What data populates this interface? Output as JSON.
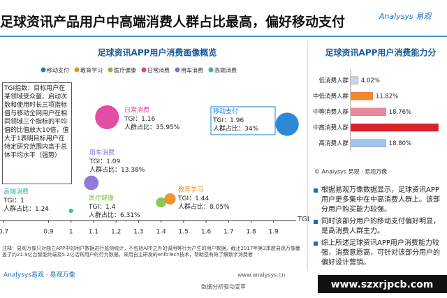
{
  "header": {
    "title": "足球资讯产品用户中高端消费人群占比最高，偏好移动支付",
    "logo": "Analysys 易观"
  },
  "chart_data": [
    {
      "type": "bubble",
      "title": "足球资讯APP用户消费画像概览",
      "x_label": "TGI",
      "tgi_prefix": "TGI：",
      "share_prefix": "人群占比：",
      "categories": [
        "移动支付",
        "教育学习",
        "医疗健康",
        "日常消费",
        "用车消费",
        "高端消费"
      ],
      "colors": [
        "#1a7fd4",
        "#f08a24",
        "#7cc142",
        "#e0409a",
        "#8a6fd6",
        "#3bb3a0"
      ],
      "x": [
        1.96,
        1.44,
        1.4,
        1.16,
        1.09,
        1
      ],
      "sizes": [
        34,
        8.05,
        6.31,
        35.95,
        13.38,
        1.24
      ],
      "size_labels": [
        "34%",
        "8.05%",
        "6.31%",
        "35.95%",
        "13.38%",
        "1.24"
      ],
      "xlim": [
        0.7,
        2.0
      ],
      "xticks": [
        0.7,
        0.9,
        1,
        1.1,
        1.2,
        1.3,
        1.4,
        1.5,
        1.6,
        1.7,
        1.8,
        1.9
      ]
    },
    {
      "type": "hbar",
      "title": "足球资讯APP用户消费能力分",
      "categories": [
        "低消费人群",
        "中低消费人群",
        "中等消费人群",
        "中高消费人群",
        "高消费人群"
      ],
      "values": [
        4.02,
        11.82,
        18.76,
        46.6,
        18.8
      ],
      "value_labels": [
        "4.02%",
        "11.82%",
        "18.76%",
        null,
        "18.80%"
      ],
      "colors": [
        "#bcd7f0",
        "#f08a24",
        "#e98a9c",
        "#d9222a",
        "#9cc8ec"
      ],
      "xlim": [
        0,
        50
      ],
      "source": "© Analysys 易观 · 易观万像"
    }
  ],
  "tgi_note": "TGI指数：目标用户在某领域受众量、启动次数和使用时长三项指标值与移动全网用户在相同领域三个指标的平均值的比值放大10倍，值大于1表明目标用户在特定研究范围内高于总体平均水平（强势）",
  "footnote": "注释：易观万像只对独立APP中的用户数据进行监测统计，不包括APP之外的调用等行为产生的用户数据。截止2017年第3季度易观万像覆盖了约21.9亿台智能终端及5.2亿活跃用户的行为数据，采用自主研发的enfoTech技术，帮助您有效了解数字消费者",
  "footer": {
    "brand": "Analysys易观 · 易观万像",
    "site": "www.analysys.cn",
    "slogan": "数据分析驱动变革"
  },
  "bullets": [
    "根据易观万像数据显示，足球资讯APP用户更多集中在中高消费人群上。该部分用户购买能力较强。",
    "同时该部分用户的移动支付偏好明显，是高消费人群主力。",
    "综上所述足球资讯APP用户消费能力较强，消费意愿高，可针对该部分用户的偏好设计营销。"
  ],
  "watermark": "www.szxrjpcb.com"
}
